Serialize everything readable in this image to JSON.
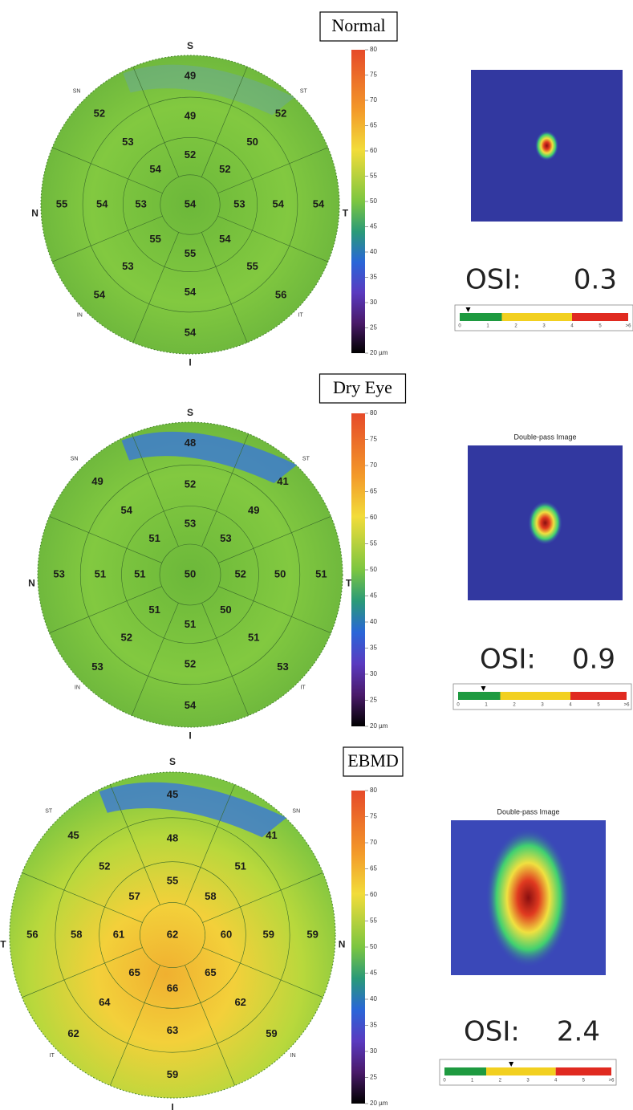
{
  "panels": [
    {
      "title": "Normal",
      "directions": {
        "top": "S",
        "right": "T",
        "bottom": "I",
        "left": "N",
        "upper_left": "SN",
        "upper_right": "ST",
        "lower_left": "IN",
        "lower_right": "IT"
      },
      "center": "54",
      "inner_ring": [
        "52",
        "52",
        "53",
        "54",
        "55",
        "55",
        "53",
        "54"
      ],
      "middle_ring": [
        "49",
        "50",
        "54",
        "55",
        "54",
        "53",
        "54",
        "53"
      ],
      "outer_ring": [
        "49",
        "52",
        "54",
        "56",
        "54",
        "54",
        "55",
        "52"
      ],
      "colorbar": [
        "80",
        "75",
        "70",
        "65",
        "60",
        "55",
        "50",
        "45",
        "40",
        "35",
        "30",
        "25",
        "20 µm"
      ],
      "osi_label": "OSI:",
      "osi_value": "0.3",
      "osi_scale": [
        "0",
        "1",
        "2",
        "3",
        "4",
        "5",
        ">6"
      ]
    },
    {
      "title": "Dry Eye",
      "directions": {
        "top": "S",
        "right": "T",
        "bottom": "I",
        "left": "N",
        "upper_left": "SN",
        "upper_right": "ST",
        "lower_left": "IN",
        "lower_right": "IT"
      },
      "center": "50",
      "inner_ring": [
        "53",
        "53",
        "52",
        "50",
        "51",
        "51",
        "51",
        "51"
      ],
      "middle_ring": [
        "52",
        "49",
        "50",
        "51",
        "52",
        "52",
        "51",
        "54"
      ],
      "outer_ring": [
        "48",
        "41",
        "51",
        "53",
        "54",
        "53",
        "53",
        "49"
      ],
      "colorbar": [
        "80",
        "75",
        "70",
        "65",
        "60",
        "55",
        "50",
        "45",
        "40",
        "35",
        "30",
        "25",
        "20 µm"
      ],
      "image_title": "Double-pass Image",
      "osi_label": "OSI:",
      "osi_value": "0.9",
      "osi_scale": [
        "0",
        "1",
        "2",
        "3",
        "4",
        "5",
        ">6"
      ]
    },
    {
      "title": "EBMD",
      "directions": {
        "top": "S",
        "right": "N",
        "bottom": "I",
        "left": "T",
        "upper_left": "ST",
        "upper_right": "SN",
        "lower_left": "IT",
        "lower_right": "IN"
      },
      "center": "62",
      "inner_ring": [
        "55",
        "58",
        "60",
        "65",
        "66",
        "65",
        "61",
        "57"
      ],
      "middle_ring": [
        "48",
        "51",
        "59",
        "62",
        "63",
        "64",
        "58",
        "52"
      ],
      "outer_ring": [
        "45",
        "41",
        "59",
        "59",
        "59",
        "62",
        "56",
        "45"
      ],
      "colorbar": [
        "80",
        "75",
        "70",
        "65",
        "60",
        "55",
        "50",
        "45",
        "40",
        "35",
        "30",
        "25",
        "20 µm"
      ],
      "image_title": "Double-pass Image",
      "osi_label": "OSI:",
      "osi_value": "2.4",
      "osi_scale": [
        "0",
        "1",
        "2",
        "3",
        "4",
        "5",
        ">6"
      ]
    }
  ]
}
